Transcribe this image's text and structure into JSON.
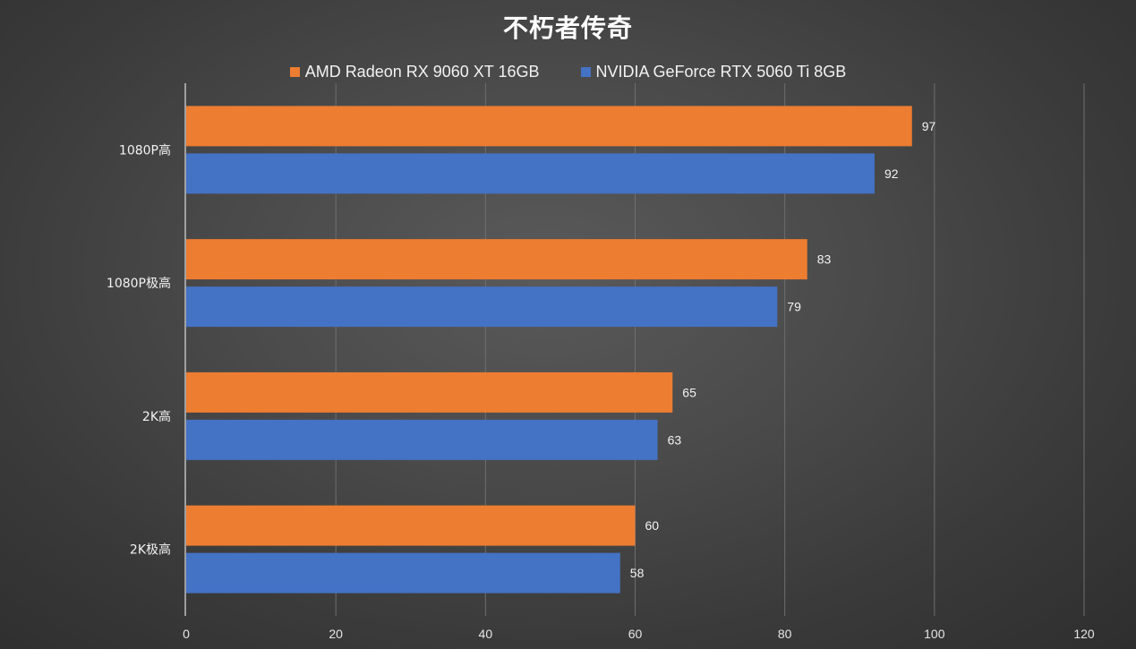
{
  "chart_data": {
    "type": "bar",
    "orientation": "horizontal",
    "title": "不朽者传奇",
    "categories": [
      "1080P高",
      "1080P极高",
      "2K高",
      "2K极高"
    ],
    "series": [
      {
        "name": "AMD Radeon RX 9060 XT 16GB",
        "color": "#ed7d31",
        "values": [
          97,
          83,
          65,
          60
        ]
      },
      {
        "name": "NVIDIA GeForce RTX 5060 Ti 8GB",
        "color": "#4472c4",
        "values": [
          92,
          79,
          63,
          58
        ]
      }
    ],
    "xlim": [
      0,
      120
    ],
    "xticks": [
      0,
      20,
      40,
      60,
      80,
      100,
      120
    ],
    "grid": true,
    "legend_position": "top"
  }
}
